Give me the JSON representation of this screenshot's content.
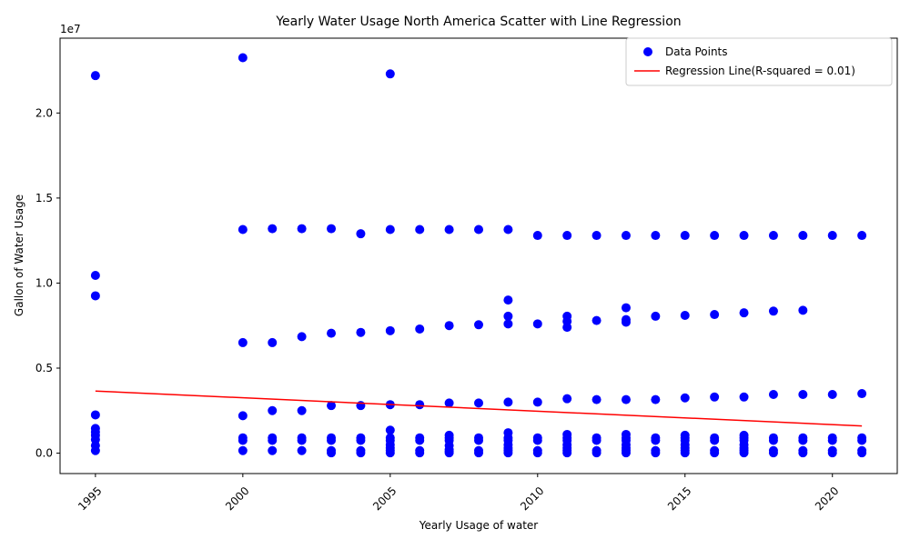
{
  "chart_data": {
    "type": "scatter",
    "title": "Yearly Water Usage North America Scatter with Line Regression",
    "xlabel": "Yearly Usage of water",
    "ylabel": "Gallon of Water Usage",
    "y_offset_label": "1e7",
    "y_multiplier": 10000000,
    "xlim": [
      1993.8,
      2022.2
    ],
    "ylim": [
      -1.2,
      24.4
    ],
    "x_ticks": [
      1995,
      2000,
      2005,
      2010,
      2015,
      2020
    ],
    "y_ticks": [
      0.0,
      0.5,
      1.0,
      1.5,
      2.0
    ],
    "y_tick_labels": [
      "0.0",
      "0.5",
      "1.0",
      "1.5",
      "2.0"
    ],
    "grid": false,
    "legend_position": "top-right",
    "colors": {
      "points": "#0000ff",
      "regression": "#ff0000"
    },
    "series": [
      {
        "name": "Data Points",
        "kind": "scatter",
        "points": [
          [
            1995,
            22.2
          ],
          [
            1995,
            10.45
          ],
          [
            1995,
            9.25
          ],
          [
            1995,
            2.25
          ],
          [
            1995,
            1.45
          ],
          [
            1995,
            1.25
          ],
          [
            1995,
            1.05
          ],
          [
            1995,
            0.8
          ],
          [
            1995,
            0.45
          ],
          [
            1995,
            0.15
          ],
          [
            2000,
            23.25
          ],
          [
            2000,
            13.15
          ],
          [
            2000,
            6.5
          ],
          [
            2000,
            2.2
          ],
          [
            2000,
            0.9
          ],
          [
            2000,
            0.75
          ],
          [
            2000,
            0.15
          ],
          [
            2001,
            13.2
          ],
          [
            2001,
            6.5
          ],
          [
            2001,
            2.5
          ],
          [
            2001,
            0.9
          ],
          [
            2001,
            0.75
          ],
          [
            2001,
            0.15
          ],
          [
            2002,
            13.2
          ],
          [
            2002,
            6.85
          ],
          [
            2002,
            2.5
          ],
          [
            2002,
            0.9
          ],
          [
            2002,
            0.75
          ],
          [
            2002,
            0.15
          ],
          [
            2003,
            13.2
          ],
          [
            2003,
            7.05
          ],
          [
            2003,
            2.8
          ],
          [
            2003,
            0.9
          ],
          [
            2003,
            0.75
          ],
          [
            2003,
            0.15
          ],
          [
            2003,
            0.02
          ],
          [
            2004,
            12.9
          ],
          [
            2004,
            7.1
          ],
          [
            2004,
            2.8
          ],
          [
            2004,
            0.9
          ],
          [
            2004,
            0.75
          ],
          [
            2004,
            0.15
          ],
          [
            2004,
            0.02
          ],
          [
            2005,
            22.3
          ],
          [
            2005,
            13.15
          ],
          [
            2005,
            7.2
          ],
          [
            2005,
            2.85
          ],
          [
            2005,
            1.35
          ],
          [
            2005,
            0.9
          ],
          [
            2005,
            0.75
          ],
          [
            2005,
            0.5
          ],
          [
            2005,
            0.3
          ],
          [
            2005,
            0.15
          ],
          [
            2005,
            0.02
          ],
          [
            2006,
            13.15
          ],
          [
            2006,
            7.3
          ],
          [
            2006,
            2.85
          ],
          [
            2006,
            0.9
          ],
          [
            2006,
            0.75
          ],
          [
            2006,
            0.15
          ],
          [
            2006,
            0.02
          ],
          [
            2007,
            13.15
          ],
          [
            2007,
            7.5
          ],
          [
            2007,
            2.95
          ],
          [
            2007,
            1.05
          ],
          [
            2007,
            0.9
          ],
          [
            2007,
            0.75
          ],
          [
            2007,
            0.45
          ],
          [
            2007,
            0.2
          ],
          [
            2007,
            0.1
          ],
          [
            2007,
            0.02
          ],
          [
            2008,
            13.15
          ],
          [
            2008,
            7.55
          ],
          [
            2008,
            2.95
          ],
          [
            2008,
            0.9
          ],
          [
            2008,
            0.75
          ],
          [
            2008,
            0.15
          ],
          [
            2008,
            0.02
          ],
          [
            2009,
            13.15
          ],
          [
            2009,
            9.0
          ],
          [
            2009,
            8.05
          ],
          [
            2009,
            7.6
          ],
          [
            2009,
            3.0
          ],
          [
            2009,
            1.2
          ],
          [
            2009,
            0.9
          ],
          [
            2009,
            0.75
          ],
          [
            2009,
            0.5
          ],
          [
            2009,
            0.3
          ],
          [
            2009,
            0.15
          ],
          [
            2009,
            0.02
          ],
          [
            2010,
            12.8
          ],
          [
            2010,
            7.6
          ],
          [
            2010,
            3.0
          ],
          [
            2010,
            0.9
          ],
          [
            2010,
            0.75
          ],
          [
            2010,
            0.15
          ],
          [
            2010,
            0.02
          ],
          [
            2011,
            12.8
          ],
          [
            2011,
            8.05
          ],
          [
            2011,
            7.75
          ],
          [
            2011,
            7.4
          ],
          [
            2011,
            3.2
          ],
          [
            2011,
            1.1
          ],
          [
            2011,
            0.9
          ],
          [
            2011,
            0.75
          ],
          [
            2011,
            0.5
          ],
          [
            2011,
            0.3
          ],
          [
            2011,
            0.15
          ],
          [
            2011,
            0.02
          ],
          [
            2012,
            12.8
          ],
          [
            2012,
            7.8
          ],
          [
            2012,
            3.15
          ],
          [
            2012,
            0.9
          ],
          [
            2012,
            0.75
          ],
          [
            2012,
            0.15
          ],
          [
            2012,
            0.02
          ],
          [
            2013,
            12.8
          ],
          [
            2013,
            8.55
          ],
          [
            2013,
            7.85
          ],
          [
            2013,
            7.7
          ],
          [
            2013,
            3.15
          ],
          [
            2013,
            1.1
          ],
          [
            2013,
            0.9
          ],
          [
            2013,
            0.75
          ],
          [
            2013,
            0.5
          ],
          [
            2013,
            0.3
          ],
          [
            2013,
            0.15
          ],
          [
            2013,
            0.02
          ],
          [
            2014,
            12.8
          ],
          [
            2014,
            8.05
          ],
          [
            2014,
            3.15
          ],
          [
            2014,
            0.9
          ],
          [
            2014,
            0.75
          ],
          [
            2014,
            0.15
          ],
          [
            2014,
            0.02
          ],
          [
            2015,
            12.8
          ],
          [
            2015,
            8.1
          ],
          [
            2015,
            3.25
          ],
          [
            2015,
            1.05
          ],
          [
            2015,
            0.9
          ],
          [
            2015,
            0.75
          ],
          [
            2015,
            0.5
          ],
          [
            2015,
            0.3
          ],
          [
            2015,
            0.15
          ],
          [
            2015,
            0.02
          ],
          [
            2016,
            12.8
          ],
          [
            2016,
            8.15
          ],
          [
            2016,
            3.3
          ],
          [
            2016,
            0.9
          ],
          [
            2016,
            0.75
          ],
          [
            2016,
            0.15
          ],
          [
            2016,
            0.02
          ],
          [
            2017,
            12.8
          ],
          [
            2017,
            8.25
          ],
          [
            2017,
            3.3
          ],
          [
            2017,
            1.05
          ],
          [
            2017,
            0.9
          ],
          [
            2017,
            0.75
          ],
          [
            2017,
            0.5
          ],
          [
            2017,
            0.3
          ],
          [
            2017,
            0.15
          ],
          [
            2017,
            0.02
          ],
          [
            2018,
            12.8
          ],
          [
            2018,
            8.35
          ],
          [
            2018,
            3.45
          ],
          [
            2018,
            0.9
          ],
          [
            2018,
            0.75
          ],
          [
            2018,
            0.15
          ],
          [
            2018,
            0.02
          ],
          [
            2019,
            12.8
          ],
          [
            2019,
            8.4
          ],
          [
            2019,
            3.45
          ],
          [
            2019,
            0.9
          ],
          [
            2019,
            0.75
          ],
          [
            2019,
            0.15
          ],
          [
            2019,
            0.02
          ],
          [
            2020,
            12.8
          ],
          [
            2020,
            3.45
          ],
          [
            2020,
            0.9
          ],
          [
            2020,
            0.75
          ],
          [
            2020,
            0.15
          ],
          [
            2020,
            0.02
          ],
          [
            2021,
            12.8
          ],
          [
            2021,
            3.5
          ],
          [
            2021,
            0.9
          ],
          [
            2021,
            0.75
          ],
          [
            2021,
            0.15
          ],
          [
            2021,
            0.02
          ]
        ]
      },
      {
        "name": "Regression Line(R-squared = 0.01)",
        "kind": "line",
        "points": [
          [
            1995,
            3.65
          ],
          [
            2021,
            1.6
          ]
        ]
      }
    ]
  }
}
